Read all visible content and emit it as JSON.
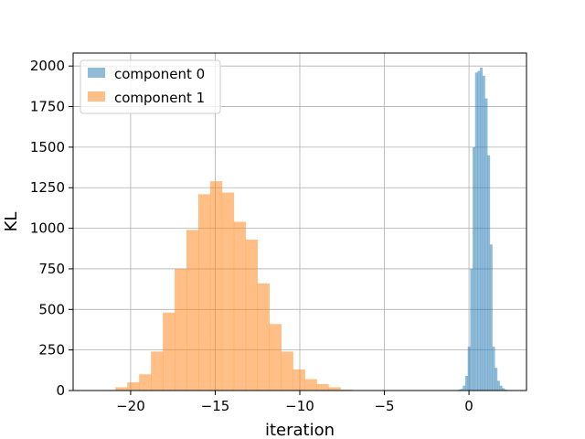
{
  "chart_data": {
    "type": "histogram",
    "xlabel": "iteration",
    "ylabel": "KL",
    "xlim": [
      -23.4,
      3.4
    ],
    "ylim": [
      0,
      2080
    ],
    "xticks": [
      -20,
      -15,
      -10,
      -5,
      0
    ],
    "xtick_labels": [
      "−20",
      "−15",
      "−10",
      "−5",
      "0"
    ],
    "yticks": [
      0,
      250,
      500,
      750,
      1000,
      1250,
      1500,
      1750,
      2000
    ],
    "ytick_labels": [
      "0",
      "250",
      "500",
      "750",
      "1000",
      "1250",
      "1500",
      "1750",
      "2000"
    ],
    "grid": true,
    "legend_position": "upper left",
    "series": [
      {
        "name": "component 0",
        "color": "#1f77b4",
        "alpha": 0.5,
        "bin_start": -0.8,
        "bin_width": 0.145,
        "counts": [
          2,
          5,
          10,
          30,
          90,
          270,
          750,
          1500,
          1960,
          1970,
          1990,
          1940,
          1800,
          1450,
          900,
          270,
          140,
          60,
          30,
          15,
          5,
          3,
          2
        ]
      },
      {
        "name": "component 1",
        "color": "#ff7f0e",
        "alpha": 0.5,
        "bin_start": -21.6,
        "bin_width": 0.7,
        "counts": [
          3,
          20,
          50,
          100,
          240,
          480,
          750,
          990,
          1210,
          1290,
          1220,
          1040,
          930,
          660,
          410,
          240,
          130,
          70,
          40,
          20,
          5,
          1
        ]
      }
    ]
  }
}
